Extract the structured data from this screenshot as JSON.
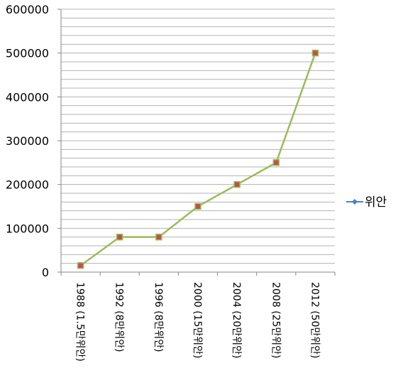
{
  "chart_data": {
    "type": "line",
    "title": "",
    "xlabel": "",
    "ylabel": "",
    "categories": [
      "1988 (1.5만위안)",
      "1992 (8만위안)",
      "1996 (8만위안)",
      "2000 (15만위안)",
      "2004 (20만위안)",
      "2008 (25만위안)",
      "2012 (50만위안)"
    ],
    "series": [
      {
        "name": "위안",
        "values": [
          15000,
          80000,
          80000,
          150000,
          200000,
          250000,
          500000
        ]
      }
    ],
    "ylim": [
      0,
      600000
    ],
    "yticks": [
      "0",
      "100000",
      "200000",
      "300000",
      "400000",
      "500000",
      "600000"
    ],
    "grid": true,
    "legend_position": "right",
    "colors": {
      "line": "#9bbb59",
      "marker": "#c0504d",
      "legend_line": "#4f81bd",
      "grid": "#b3b3b3",
      "axis": "#868686"
    }
  }
}
